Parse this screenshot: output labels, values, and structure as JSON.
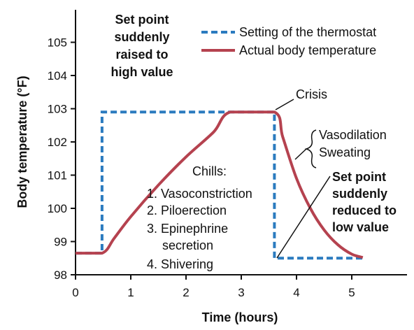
{
  "chart_data": {
    "type": "line",
    "xlabel": "Time (hours)",
    "ylabel": "Body temperature (°F)",
    "xlim": [
      0,
      5.9
    ],
    "ylim": [
      98,
      106
    ],
    "x_ticks": [
      "0",
      "1",
      "2",
      "3",
      "4",
      "5"
    ],
    "y_ticks": [
      "98",
      "99",
      "100",
      "101",
      "102",
      "103",
      "104",
      "105"
    ],
    "grid": false,
    "legend_position": "top-right",
    "series": [
      {
        "name": "Setting of the thermostat",
        "color": "#2b7bbf",
        "style": "dashed",
        "points": [
          [
            0.0,
            98.65
          ],
          [
            0.48,
            98.65
          ],
          [
            0.48,
            102.9
          ],
          [
            3.6,
            102.9
          ],
          [
            3.6,
            98.5
          ],
          [
            5.2,
            98.5
          ]
        ]
      },
      {
        "name": "Actual body temperature",
        "color": "#b5424f",
        "style": "solid",
        "points": [
          [
            0.0,
            98.65
          ],
          [
            0.48,
            98.65
          ],
          [
            0.7,
            99.1
          ],
          [
            1.0,
            99.75
          ],
          [
            1.5,
            100.7
          ],
          [
            2.0,
            101.55
          ],
          [
            2.5,
            102.3
          ],
          [
            2.8,
            102.9
          ],
          [
            3.6,
            102.9
          ],
          [
            3.75,
            102.15
          ],
          [
            4.0,
            100.9
          ],
          [
            4.25,
            100.0
          ],
          [
            4.5,
            99.35
          ],
          [
            4.75,
            98.9
          ],
          [
            5.0,
            98.62
          ],
          [
            5.2,
            98.52
          ]
        ]
      }
    ],
    "annotations": {
      "setpoint_raised": [
        "Set point",
        "suddenly",
        "raised to",
        "high value"
      ],
      "crisis": "Crisis",
      "vasodilation": [
        "Vasodilation",
        "Sweating"
      ],
      "setpoint_reduced": [
        "Set point",
        "suddenly",
        "reduced to",
        "low value"
      ],
      "chills_title": "Chills:",
      "chills_items": [
        "1. Vasoconstriction",
        "2. Piloerection",
        "3. Epinephrine",
        "secretion",
        "4. Shivering"
      ]
    }
  }
}
